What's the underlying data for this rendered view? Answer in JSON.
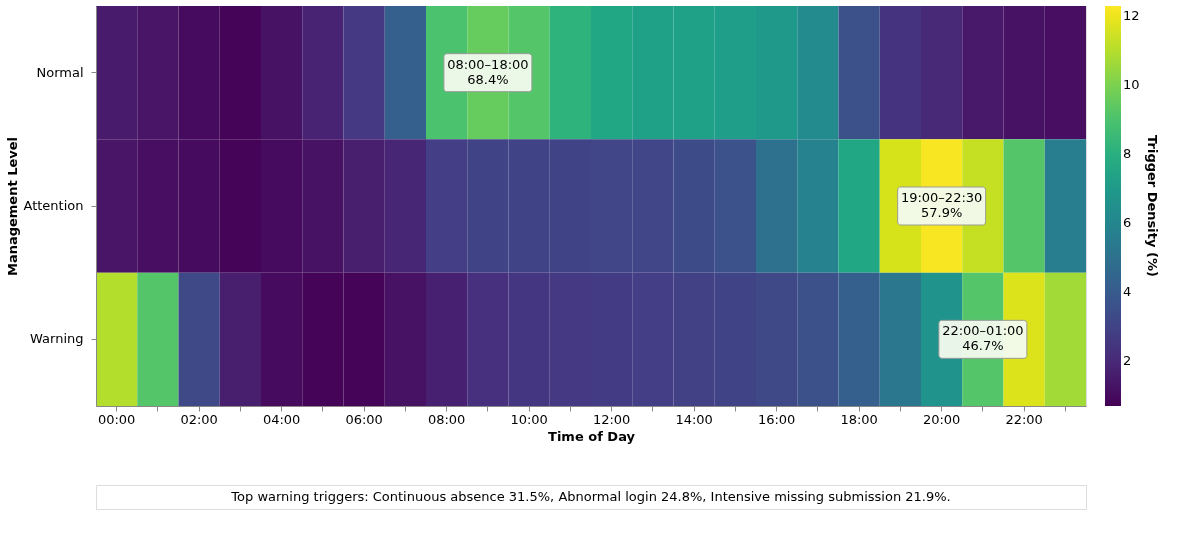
{
  "chart_data": {
    "type": "heatmap",
    "xlabel": "Time of Day",
    "ylabel": "Management Level",
    "clabel": "Trigger Density (%)",
    "categories": [
      "00:00",
      null,
      "02:00",
      null,
      "04:00",
      null,
      "06:00",
      null,
      "08:00",
      null,
      "10:00",
      null,
      "12:00",
      null,
      "14:00",
      null,
      "16:00",
      null,
      "18:00",
      null,
      "20:00",
      null,
      "22:00",
      null
    ],
    "y_categories": [
      "Normal",
      "Attention",
      "Warning"
    ],
    "cells": [
      [
        1.5,
        1.3,
        1.0,
        0.8,
        1.2,
        1.8,
        2.6,
        4.2,
        9.0,
        9.6,
        9.2,
        8.2,
        7.6,
        7.3,
        7.3,
        7.2,
        7.0,
        6.2,
        3.5,
        2.4,
        2.0,
        1.4,
        1.2,
        1.1
      ],
      [
        1.3,
        1.1,
        1.0,
        0.8,
        1.0,
        1.2,
        1.6,
        1.9,
        2.8,
        3.0,
        3.0,
        3.0,
        3.1,
        3.1,
        3.3,
        3.6,
        5.0,
        5.8,
        7.6,
        11.6,
        12.2,
        11.3,
        9.2,
        5.6
      ],
      [
        11.0,
        9.2,
        3.2,
        1.6,
        1.0,
        0.8,
        0.8,
        1.2,
        1.7,
        2.3,
        2.5,
        2.6,
        2.7,
        2.8,
        2.9,
        3.0,
        3.2,
        3.5,
        4.2,
        5.3,
        6.6,
        9.2,
        11.7,
        10.7
      ]
    ],
    "clim": [
      0.7,
      12.3
    ],
    "cticks": [
      2,
      4,
      6,
      8,
      10,
      12
    ],
    "annotations": [
      "08:00–18:00\n68.4%",
      "19:00–22:30\n57.9%",
      "22:00–01:00\n46.7%",
      "Top warning triggers: Continuous absence 31.5%, Abnormal login 24.8%, Intensive missing submission 21.9%."
    ]
  }
}
